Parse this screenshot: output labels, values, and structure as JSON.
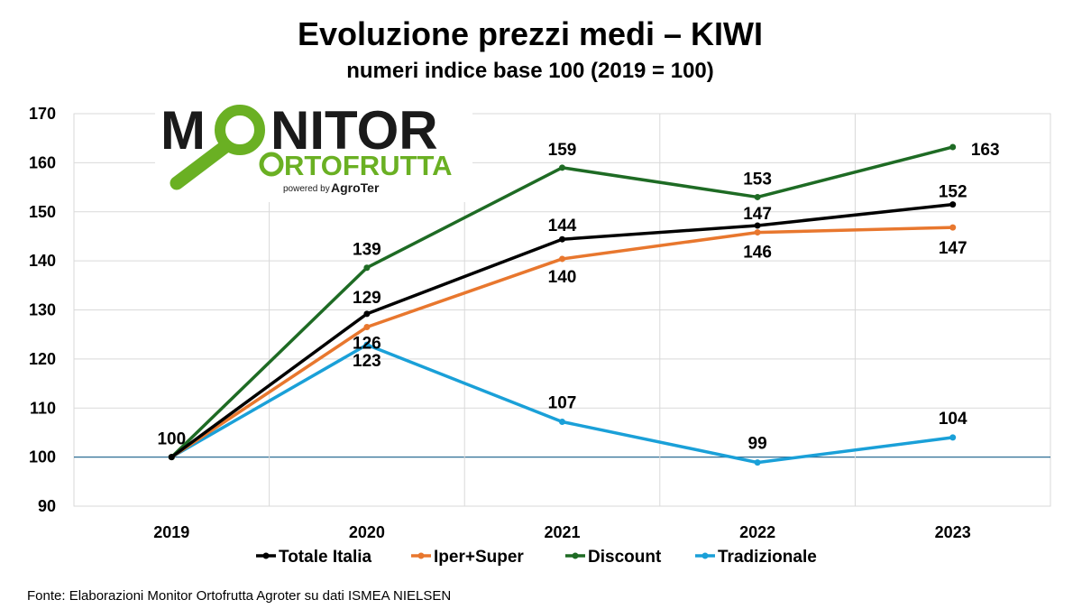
{
  "chart_data": {
    "type": "line",
    "title": "Evoluzione prezzi medi – KIWI",
    "subtitle": "numeri indice base 100 (2019 = 100)",
    "categories": [
      "2019",
      "2020",
      "2021",
      "2022",
      "2023"
    ],
    "ylim": [
      90,
      170
    ],
    "yticks": [
      90,
      100,
      110,
      120,
      130,
      140,
      150,
      160,
      170
    ],
    "baseline": 100,
    "grid": true,
    "legend_position": "bottom",
    "series": [
      {
        "name": "Totale Italia",
        "color": "#000000",
        "values": [
          100,
          129.2,
          144.4,
          147.2,
          151.5
        ],
        "labels": [
          "100",
          "129",
          "144",
          "147",
          "152"
        ]
      },
      {
        "name": "Iper+Super",
        "color": "#E8772E",
        "values": [
          100,
          126.5,
          140.4,
          145.8,
          146.8
        ],
        "labels": [
          "",
          "126",
          "140",
          "146",
          "147"
        ]
      },
      {
        "name": "Discount",
        "color": "#1E6B24",
        "values": [
          100,
          138.6,
          159,
          153,
          163.2
        ],
        "labels": [
          "",
          "139",
          "159",
          "153",
          "163"
        ]
      },
      {
        "name": "Tradizionale",
        "color": "#1AA0D8",
        "values": [
          100,
          122.9,
          107.2,
          98.9,
          104
        ],
        "labels": [
          "",
          "123",
          "107",
          "99",
          "104"
        ]
      }
    ]
  },
  "logo": {
    "line1_prefix": "M",
    "line1_suffix": "NITOR",
    "line2": "RTOFRUTTA",
    "powered": "powered by",
    "brand": "AgroTer",
    "colors": {
      "dark": "#1a1a1a",
      "green": "#6AB023"
    }
  },
  "source": "Fonte: Elaborazioni Monitor Ortofrutta Agroter su dati ISMEA NIELSEN"
}
